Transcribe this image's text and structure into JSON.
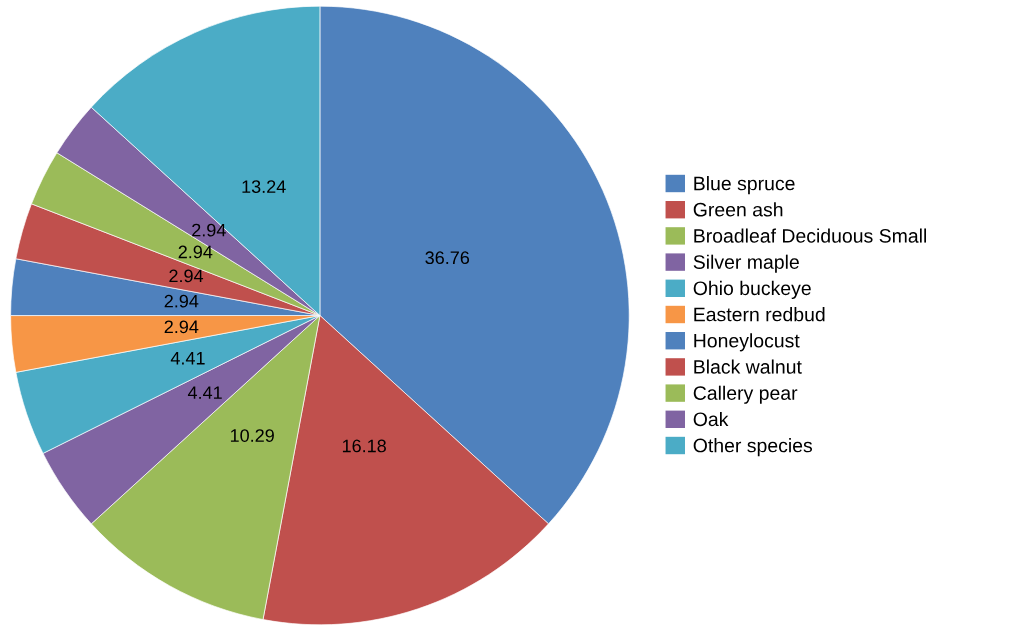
{
  "chart_data": {
    "type": "pie",
    "categories": [
      "Blue spruce",
      "Green ash",
      "Broadleaf Deciduous Small",
      "Silver maple",
      "Ohio buckeye",
      "Eastern redbud",
      "Honeylocust",
      "Black walnut",
      "Callery pear",
      "Oak",
      "Other species"
    ],
    "values": [
      36.76,
      16.18,
      10.29,
      4.41,
      4.41,
      2.94,
      2.94,
      2.94,
      2.94,
      2.94,
      13.24
    ],
    "colors": [
      "#4f81bd",
      "#c0504d",
      "#9bbb59",
      "#8064a2",
      "#4bacc6",
      "#f79646",
      "#4f81bd",
      "#c0504d",
      "#9bbb59",
      "#8064a2",
      "#4bacc6"
    ],
    "data_labels": true,
    "legend": "right"
  }
}
